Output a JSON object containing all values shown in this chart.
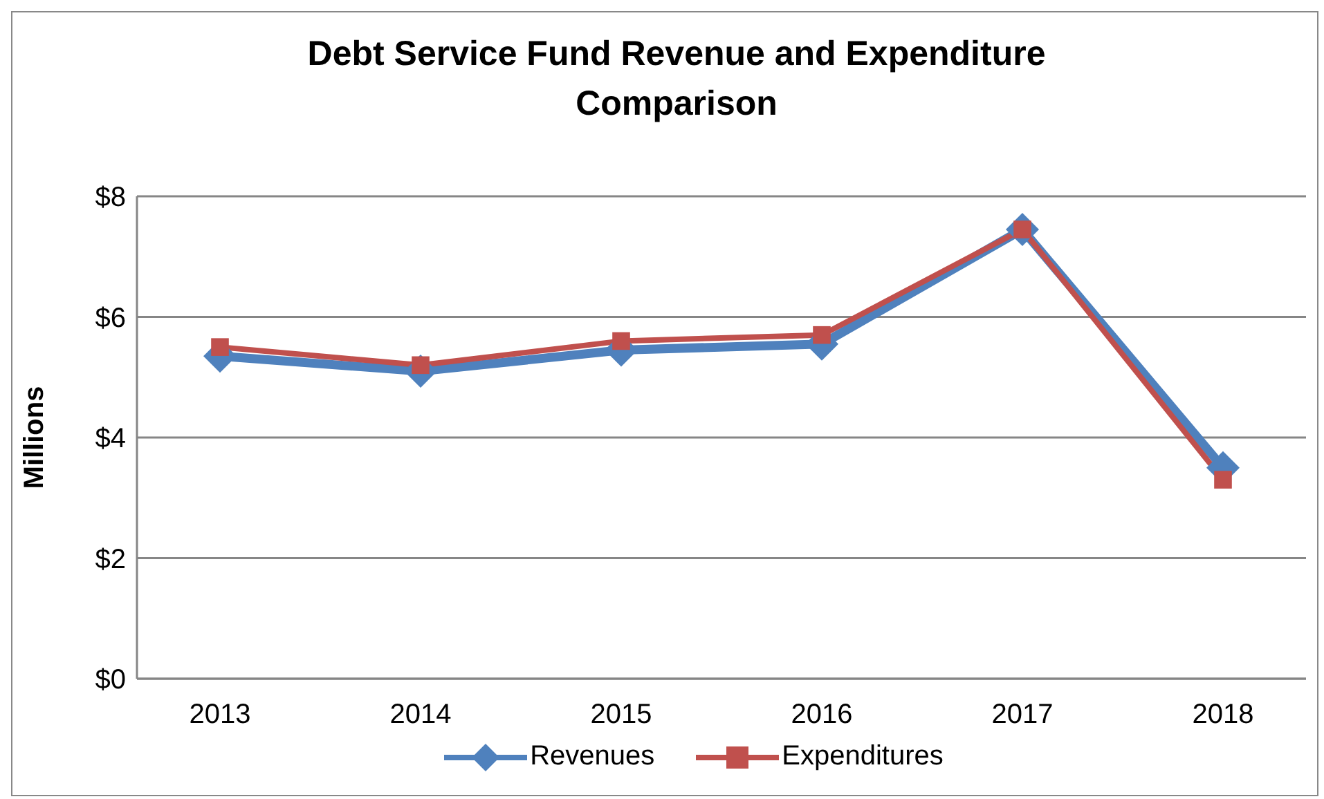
{
  "chart_data": {
    "type": "line",
    "title": "Debt Service Fund Revenue and Expenditure Comparison",
    "ylabel": "Millions",
    "categories": [
      "2013",
      "2014",
      "2015",
      "2016",
      "2017",
      "2018"
    ],
    "series": [
      {
        "name": "Revenues",
        "color": "#4f81bd",
        "marker": "diamond",
        "values": [
          5.35,
          5.1,
          5.45,
          5.55,
          7.45,
          3.5
        ]
      },
      {
        "name": "Expenditures",
        "color": "#c0504d",
        "marker": "square",
        "values": [
          5.5,
          5.2,
          5.6,
          5.7,
          7.45,
          3.3
        ]
      }
    ],
    "ylim": [
      0,
      8
    ],
    "yticks": [
      {
        "value": 0,
        "label": "$0"
      },
      {
        "value": 2,
        "label": "$2"
      },
      {
        "value": 4,
        "label": "$4"
      },
      {
        "value": 6,
        "label": "$6"
      },
      {
        "value": 8,
        "label": "$8"
      }
    ],
    "grid": "y",
    "legend": "bottom"
  }
}
